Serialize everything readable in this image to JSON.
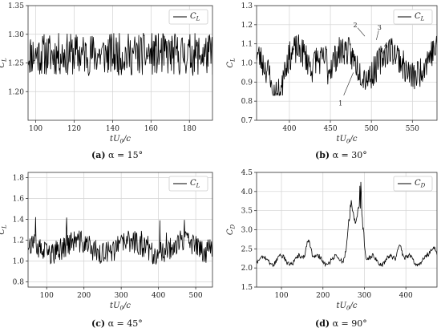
{
  "chart_data": [
    {
      "type": "line",
      "series": [
        {
          "name": "C_L",
          "color": "#000000",
          "seed": 11,
          "base": 1.265,
          "amp": 0.02,
          "lo": 1.22,
          "hi": 1.315
        }
      ],
      "legend": {
        "main": "C",
        "sub": "L",
        "placement": "top-right"
      },
      "xlabel": {
        "main": "tU",
        "sub": "0",
        "tail": "/c"
      },
      "ylabel": {
        "main": "C",
        "sub": "L"
      },
      "xlim": [
        96,
        192
      ],
      "ylim": [
        1.15,
        1.35
      ],
      "xticks": [
        "100",
        "120",
        "140",
        "160",
        "180"
      ],
      "yticks": [
        "1.20",
        "1.25",
        "1.30",
        "1.35"
      ],
      "grid": true,
      "caption": {
        "tag": "(a)",
        "text": "α = 15°"
      }
    },
    {
      "type": "line",
      "series": [
        {
          "name": "C_L",
          "color": "#000000",
          "seed": 23,
          "base": 1.0,
          "amp": 0.07,
          "lo": 0.83,
          "hi": 1.21
        }
      ],
      "legend": {
        "main": "C",
        "sub": "L",
        "placement": "top-right"
      },
      "xlabel": {
        "main": "tU",
        "sub": "0",
        "tail": "/c"
      },
      "ylabel": {
        "main": "C",
        "sub": "L"
      },
      "xlim": [
        360,
        580
      ],
      "ylim": [
        0.7,
        1.3
      ],
      "xticks": [
        "400",
        "450",
        "500",
        "550"
      ],
      "yticks": [
        "0.7",
        "0.8",
        "0.9",
        "1.0",
        "1.1",
        "1.2",
        "1.3"
      ],
      "grid": true,
      "annotations": [
        {
          "label": "1",
          "x": 478,
          "y": 0.95
        },
        {
          "label": "2",
          "x": 492,
          "y": 1.14
        },
        {
          "label": "3",
          "x": 506,
          "y": 1.12
        },
        {
          "label": "4",
          "x": 514,
          "y": 1.05
        }
      ],
      "caption": {
        "tag": "(b)",
        "text": "α = 30°"
      }
    },
    {
      "type": "line",
      "series": [
        {
          "name": "C_L",
          "color": "#000000",
          "seed": 37,
          "base": 1.13,
          "amp": 0.1,
          "lo": 0.96,
          "hi": 1.68
        }
      ],
      "legend": {
        "main": "C",
        "sub": "L",
        "placement": "top-right"
      },
      "xlabel": {
        "main": "tU",
        "sub": "0",
        "tail": "/c"
      },
      "ylabel": {
        "main": "C",
        "sub": "L"
      },
      "xlim": [
        50,
        545
      ],
      "ylim": [
        0.75,
        1.85
      ],
      "xticks": [
        "100",
        "200",
        "300",
        "400",
        "500"
      ],
      "yticks": [
        "0.8",
        "1.0",
        "1.2",
        "1.4",
        "1.6",
        "1.8"
      ],
      "grid": true,
      "caption": {
        "tag": "(c)",
        "text": "α = 45°"
      }
    },
    {
      "type": "line",
      "series": [
        {
          "name": "C_D",
          "color": "#000000",
          "seed": 53,
          "base": 2.2,
          "amp": 0.05,
          "lo": 1.9,
          "hi": 4.25
        }
      ],
      "legend": {
        "main": "C",
        "sub": "D",
        "placement": "top-right"
      },
      "xlabel": {
        "main": "tU",
        "sub": "0",
        "tail": "/c"
      },
      "ylabel": {
        "main": "C",
        "sub": "D"
      },
      "xlim": [
        40,
        475
      ],
      "ylim": [
        1.5,
        4.5
      ],
      "xticks": [
        "100",
        "200",
        "300",
        "400"
      ],
      "yticks": [
        "1.5",
        "2.0",
        "2.5",
        "3.0",
        "3.5",
        "4.0",
        "4.5"
      ],
      "grid": true,
      "caption": {
        "tag": "(d)",
        "text": "α = 90°"
      }
    }
  ]
}
